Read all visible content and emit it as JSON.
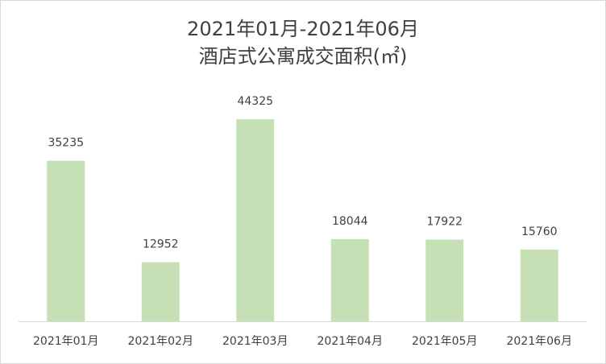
{
  "chart_data": {
    "type": "bar",
    "title": "2021年01月-2021年06月",
    "subtitle": "酒店式公寓成交面积(㎡)",
    "categories": [
      "2021年01月",
      "2021年02月",
      "2021年03月",
      "2021年04月",
      "2021年05月",
      "2021年06月"
    ],
    "values": [
      35235,
      12952,
      44325,
      18044,
      17922,
      15760
    ],
    "color": "#c5e0b4",
    "ylim": [
      0,
      50000
    ]
  }
}
